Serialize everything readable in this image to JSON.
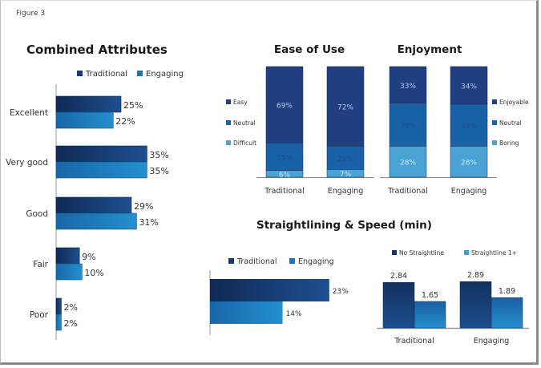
{
  "figure_label": "Figure 3",
  "colors": {
    "traditional": "#173a6e",
    "engaging": "#1d74b8",
    "easy": "#1f3f80",
    "neutral": "#1a62a8",
    "difficult": "#4aa3d4",
    "enjoyable": "#1f3f80",
    "boring": "#4aa3d4",
    "no_straightline": "#163567",
    "straightline": "#1d6fb3"
  },
  "chart_data": [
    {
      "id": "combined",
      "type": "bar",
      "orientation": "horizontal",
      "title": "Combined Attributes",
      "categories": [
        "Excellent",
        "Very good",
        "Good",
        "Fair",
        "Poor"
      ],
      "series": [
        {
          "name": "Traditional",
          "values": [
            25,
            35,
            29,
            9,
            2
          ],
          "labels": [
            "25%",
            "35%",
            "29%",
            "9%",
            "2%"
          ]
        },
        {
          "name": "Engaging",
          "values": [
            22,
            35,
            31,
            10,
            2
          ],
          "labels": [
            "22%",
            "35%",
            "31%",
            "10%",
            "2%"
          ]
        }
      ],
      "legend": "top",
      "unit": "%"
    },
    {
      "id": "ease",
      "type": "bar",
      "stacked": true,
      "title": "Ease of Use",
      "categories": [
        "Traditional",
        "Engaging"
      ],
      "series": [
        {
          "name": "Difficult",
          "values": [
            6,
            7
          ],
          "labels": [
            "6%",
            "7%"
          ]
        },
        {
          "name": "Neutral",
          "values": [
            25,
            21
          ],
          "labels": [
            "25%",
            "21%"
          ]
        },
        {
          "name": "Easy",
          "values": [
            69,
            72
          ],
          "labels": [
            "69%",
            "72%"
          ]
        }
      ],
      "legend_order": [
        "Easy",
        "Neutral",
        "Difficult"
      ],
      "legend": "left",
      "ylim": [
        0,
        100
      ]
    },
    {
      "id": "enjoyment",
      "type": "bar",
      "stacked": true,
      "title": "Enjoyment",
      "categories": [
        "Traditional",
        "Engaging"
      ],
      "series": [
        {
          "name": "Boring",
          "values": [
            28,
            28
          ],
          "labels": [
            "28%",
            "28%"
          ]
        },
        {
          "name": "Neutral",
          "values": [
            39,
            38
          ],
          "labels": [
            "39%",
            "38%"
          ]
        },
        {
          "name": "Enjoyable",
          "values": [
            33,
            34
          ],
          "labels": [
            "33%",
            "34%"
          ]
        }
      ],
      "legend_order": [
        "Enjoyable",
        "Neutral",
        "Boring"
      ],
      "legend": "right",
      "ylim": [
        0,
        100
      ]
    },
    {
      "id": "straightlining",
      "type": "bar",
      "orientation": "horizontal",
      "title": "Straightlining & Speed (min)",
      "categories": [
        ""
      ],
      "series": [
        {
          "name": "Traditional",
          "values": [
            23
          ],
          "labels": [
            "23%"
          ]
        },
        {
          "name": "Engaging",
          "values": [
            14
          ],
          "labels": [
            "14%"
          ]
        }
      ],
      "legend": "top",
      "unit": "%"
    },
    {
      "id": "speed",
      "type": "bar",
      "categories": [
        "Traditional",
        "Engaging"
      ],
      "series": [
        {
          "name": "No Straightline",
          "values": [
            2.84,
            2.89
          ],
          "labels": [
            "2.84",
            "2.89"
          ]
        },
        {
          "name": "Straightline 1+",
          "values": [
            1.65,
            1.89
          ],
          "labels": [
            "1.65",
            "1.89"
          ]
        }
      ],
      "legend": "top",
      "unit": "min"
    }
  ]
}
